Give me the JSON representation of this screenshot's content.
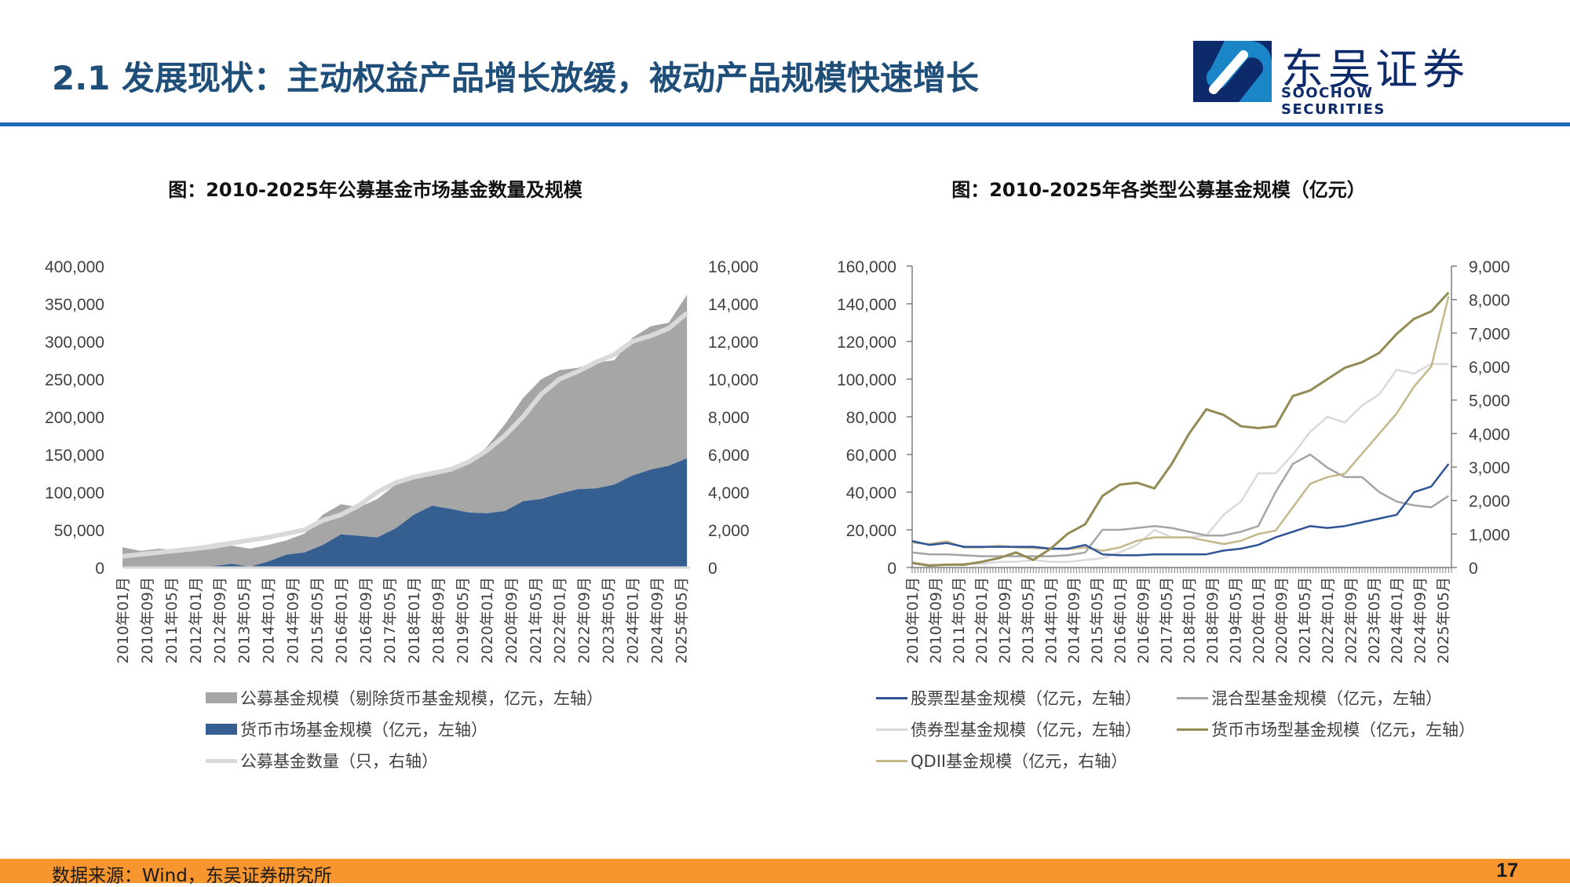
{
  "header": {
    "title": "2.1 发展现状：主动权益产品增长放缓，被动产品规模快速增长",
    "logo_cn": "东吴证券",
    "logo_en": "SOOCHOW SECURITIES"
  },
  "footer": {
    "source": "数据来源：Wind，东吴证券研究所",
    "page": "17"
  },
  "colors": {
    "title": "#1f4e79",
    "rule": "#1e6bb8",
    "footer": "#f7952e",
    "non_money": "#a6a6a6",
    "money_area": "#365f91",
    "count_line": "#d9d9d9",
    "stock": "#2f5597",
    "mixed": "#a5a5a5",
    "bond": "#d9d9d9",
    "money_line": "#948a54",
    "qdii": "#c4b78a"
  },
  "chart_data": [
    {
      "type": "area",
      "title": "图：2010-2025年公募基金市场基金数量及规模",
      "x_ticks": [
        "2010年01月",
        "2010年09月",
        "2011年05月",
        "2012年01月",
        "2012年09月",
        "2013年05月",
        "2014年01月",
        "2014年09月",
        "2015年05月",
        "2016年01月",
        "2016年09月",
        "2017年05月",
        "2018年01月",
        "2018年09月",
        "2019年05月",
        "2020年01月",
        "2020年09月",
        "2021年05月",
        "2022年01月",
        "2022年09月",
        "2023年05月",
        "2024年01月",
        "2024年09月",
        "2025年05月"
      ],
      "x": [
        "2010-01",
        "2010-07",
        "2011-01",
        "2011-07",
        "2012-01",
        "2012-07",
        "2013-01",
        "2013-07",
        "2014-01",
        "2014-07",
        "2015-01",
        "2015-07",
        "2016-01",
        "2016-07",
        "2017-01",
        "2017-07",
        "2018-01",
        "2018-07",
        "2019-01",
        "2019-07",
        "2020-01",
        "2020-07",
        "2021-01",
        "2021-07",
        "2022-01",
        "2022-07",
        "2023-01",
        "2023-07",
        "2024-01",
        "2024-07",
        "2025-01",
        "2025-07"
      ],
      "y_left_ticks": [
        "0",
        "50,000",
        "100,000",
        "150,000",
        "200,000",
        "250,000",
        "300,000",
        "350,000",
        "400,000"
      ],
      "y_right_ticks": [
        "0",
        "2,000",
        "4,000",
        "6,000",
        "8,000",
        "10,000",
        "12,000",
        "14,000",
        "16,000"
      ],
      "ylim_left": [
        0,
        400000
      ],
      "ylim_right": [
        0,
        16000
      ],
      "stacked": true,
      "series": [
        {
          "name": "货币市场基金规模（亿元，左轴）",
          "axis": "left",
          "kind": "area",
          "values": [
            0,
            0,
            0,
            0,
            0,
            2000,
            5000,
            1000,
            8000,
            17000,
            20000,
            30000,
            44000,
            42000,
            40000,
            52000,
            70000,
            82000,
            78000,
            73000,
            72000,
            75000,
            88000,
            91000,
            98000,
            104000,
            105000,
            110000,
            122000,
            130000,
            135000,
            145000
          ]
        },
        {
          "name": "公募基金规模（剔除货币基金规模，亿元，左轴）",
          "axis": "left",
          "kind": "area",
          "values": [
            27000,
            22000,
            25000,
            23000,
            22000,
            23000,
            24000,
            24000,
            22000,
            19000,
            25000,
            40000,
            40000,
            38000,
            51000,
            58000,
            50000,
            46000,
            54000,
            65000,
            88000,
            115000,
            137000,
            159000,
            164000,
            161000,
            167000,
            165000,
            183000,
            190000,
            190000,
            217000
          ]
        },
        {
          "name": "公募基金数量（只，右轴）",
          "axis": "right",
          "kind": "line",
          "values": [
            600,
            700,
            800,
            900,
            1000,
            1150,
            1300,
            1450,
            1600,
            1800,
            2000,
            2500,
            2800,
            3300,
            4000,
            4500,
            4800,
            5000,
            5200,
            5600,
            6200,
            7000,
            8000,
            9200,
            10000,
            10400,
            10900,
            11300,
            12000,
            12300,
            12700,
            13500
          ]
        }
      ]
    },
    {
      "type": "line",
      "title": "图：2010-2025年各类型公募基金规模（亿元）",
      "x_ticks": [
        "2010年01月",
        "2010年09月",
        "2011年05月",
        "2012年01月",
        "2012年09月",
        "2013年05月",
        "2014年01月",
        "2014年09月",
        "2015年05月",
        "2016年01月",
        "2016年09月",
        "2017年05月",
        "2018年01月",
        "2018年09月",
        "2019年05月",
        "2020年01月",
        "2020年09月",
        "2021年05月",
        "2022年01月",
        "2022年09月",
        "2023年05月",
        "2024年01月",
        "2024年09月",
        "2025年05月"
      ],
      "x": [
        "2010-01",
        "2010-07",
        "2011-01",
        "2011-07",
        "2012-01",
        "2012-07",
        "2013-01",
        "2013-07",
        "2014-01",
        "2014-07",
        "2015-01",
        "2015-07",
        "2016-01",
        "2016-07",
        "2017-01",
        "2017-07",
        "2018-01",
        "2018-07",
        "2019-01",
        "2019-07",
        "2020-01",
        "2020-07",
        "2021-01",
        "2021-07",
        "2022-01",
        "2022-07",
        "2023-01",
        "2023-07",
        "2024-01",
        "2024-07",
        "2025-01",
        "2025-07"
      ],
      "y_left_ticks": [
        "0",
        "20,000",
        "40,000",
        "60,000",
        "80,000",
        "100,000",
        "120,000",
        "140,000",
        "160,000"
      ],
      "y_right_ticks": [
        "0",
        "1,000",
        "2,000",
        "3,000",
        "4,000",
        "5,000",
        "6,000",
        "7,000",
        "8,000",
        "9,000"
      ],
      "ylim_left": [
        0,
        160000
      ],
      "ylim_right": [
        0,
        9000
      ],
      "series": [
        {
          "name": "股票型基金规模（亿元，左轴）",
          "axis": "left",
          "values": [
            14000,
            12000,
            13000,
            11000,
            11000,
            11000,
            11000,
            11000,
            10000,
            10000,
            12000,
            7000,
            6500,
            6500,
            7000,
            7000,
            7000,
            7000,
            9000,
            10000,
            12000,
            16000,
            19000,
            22000,
            21000,
            22000,
            24000,
            26000,
            28000,
            40000,
            43000,
            55000
          ]
        },
        {
          "name": "混合型基金规模（亿元，左轴）",
          "axis": "left",
          "values": [
            8000,
            7000,
            7000,
            6500,
            6000,
            6000,
            6000,
            6000,
            6000,
            6500,
            8000,
            20000,
            20000,
            21000,
            22000,
            21000,
            19000,
            17000,
            17000,
            19000,
            22000,
            40000,
            55000,
            60000,
            53000,
            48000,
            48000,
            40000,
            35000,
            33000,
            32000,
            38000
          ]
        },
        {
          "name": "债券型基金规模（亿元，左轴）",
          "axis": "left",
          "values": [
            2000,
            1500,
            1500,
            2000,
            2000,
            3000,
            3000,
            4000,
            3000,
            3000,
            4000,
            5000,
            8000,
            12000,
            20000,
            16000,
            16000,
            17000,
            28000,
            35000,
            50000,
            50000,
            60000,
            72000,
            80000,
            77000,
            86000,
            92000,
            105000,
            103000,
            108000,
            108000
          ]
        },
        {
          "name": "货币市场型基金规模（亿元，左轴）",
          "axis": "left",
          "values": [
            2500,
            1000,
            1500,
            1500,
            3000,
            5000,
            8000,
            4000,
            10000,
            18000,
            23000,
            38000,
            44000,
            45000,
            42000,
            55000,
            71000,
            84000,
            81000,
            75000,
            74000,
            75000,
            91000,
            94000,
            100000,
            106000,
            109000,
            114000,
            124000,
            132000,
            136000,
            146000
          ]
        },
        {
          "name": "QDII基金规模（亿元，右轴）",
          "axis": "right",
          "values": [
            750,
            700,
            780,
            600,
            600,
            650,
            600,
            580,
            560,
            550,
            600,
            500,
            600,
            800,
            900,
            900,
            900,
            800,
            700,
            800,
            1000,
            1100,
            1800,
            2500,
            2700,
            2800,
            3400,
            4000,
            4600,
            5400,
            6000,
            8100
          ]
        }
      ]
    }
  ]
}
